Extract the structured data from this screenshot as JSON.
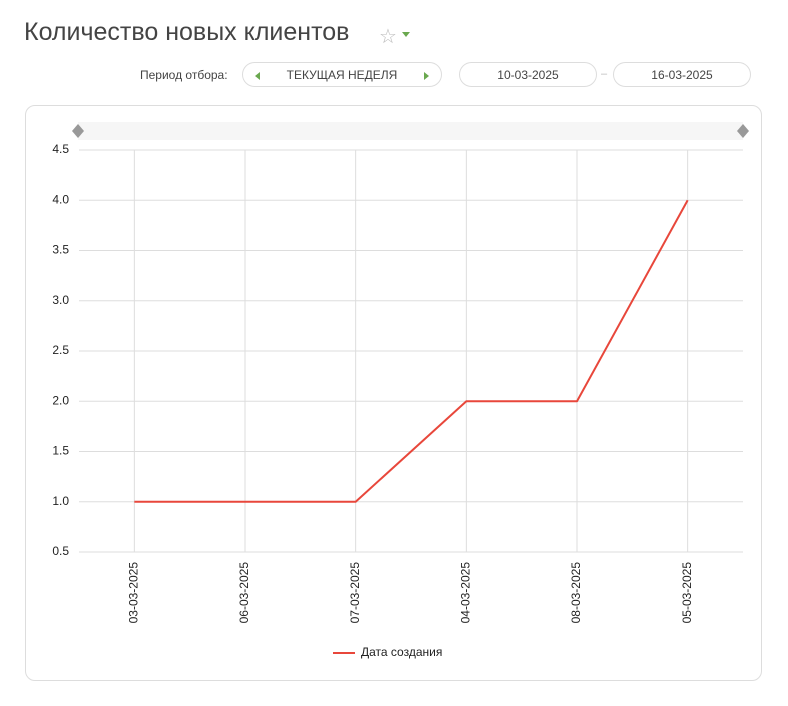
{
  "header": {
    "title": "Количество новых клиентов"
  },
  "filter": {
    "label": "Период отбора:",
    "period": "ТЕКУЩАЯ НЕДЕЛЯ",
    "date_from": "10-03-2025",
    "separator": "–",
    "date_to": "16-03-2025"
  },
  "chart_data": {
    "type": "line",
    "categories": [
      "03-03-2025",
      "06-03-2025",
      "07-03-2025",
      "04-03-2025",
      "08-03-2025",
      "05-03-2025"
    ],
    "series": [
      {
        "name": "Дата создания",
        "color": "#e8473b",
        "values": [
          1,
          1,
          1,
          2,
          2,
          4
        ]
      }
    ],
    "ylim": [
      0.5,
      4.5
    ],
    "yticks": [
      0.5,
      {
        "value": 1,
        "label": "1.0"
      },
      1.5,
      {
        "value": 2,
        "label": "2.0"
      },
      2.5,
      {
        "value": 3,
        "label": "3.0"
      },
      3.5,
      {
        "value": 4,
        "label": "4.0"
      },
      4.5
    ],
    "grid": true
  }
}
